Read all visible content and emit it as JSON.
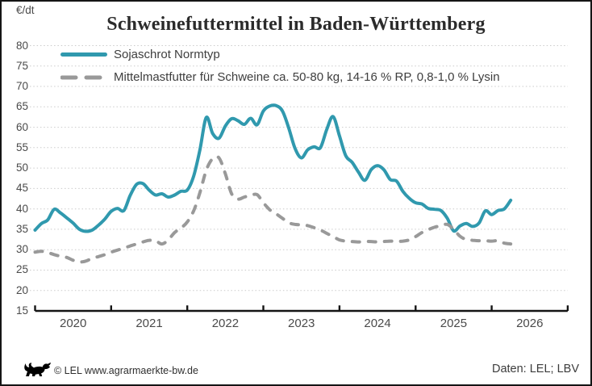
{
  "unit_label": "€/dt",
  "footer": {
    "copyright": "© LEL www.agrarmaerkte-bw.de",
    "source": "Daten: LEL; LBV",
    "logo_icon": "bw-lion-icon"
  },
  "colors": {
    "soja_line": "#3099ae",
    "mittelmast_line": "#999999",
    "grid": "#cbcbcb",
    "axis": "#141414",
    "text": "#4a4a4a"
  },
  "chart_data": {
    "type": "line",
    "title": "Schweinefuttermittel in Baden-Württemberg",
    "ylabel": "€/dt",
    "ylim": [
      15,
      80
    ],
    "y_ticks": [
      15,
      20,
      25,
      30,
      35,
      40,
      45,
      50,
      55,
      60,
      65,
      70,
      75,
      80
    ],
    "x_tick_labels": [
      "2020",
      "2021",
      "2022",
      "2023",
      "2024",
      "2025",
      "2026"
    ],
    "x_monthly_start": "2020-01",
    "grid": "horizontal-dotted",
    "legend_position": "top-left",
    "series": [
      {
        "name": "Sojaschrot Normtyp",
        "color": "#3099ae",
        "style": "solid",
        "values": [
          34.8,
          36.4,
          37.3,
          39.9,
          39.0,
          37.8,
          36.5,
          35.0,
          34.5,
          34.8,
          36.0,
          37.5,
          39.4,
          40.1,
          39.6,
          43.3,
          46.0,
          46.2,
          44.6,
          43.4,
          43.7,
          42.9,
          43.4,
          44.3,
          44.6,
          48.0,
          54.5,
          62.4,
          58.5,
          57.3,
          60.3,
          62.1,
          61.6,
          60.7,
          62.2,
          60.6,
          64.0,
          65.2,
          65.3,
          64.0,
          59.8,
          54.8,
          52.5,
          54.5,
          55.2,
          55.0,
          59.5,
          62.6,
          57.9,
          53.0,
          51.4,
          49.0,
          47.0,
          49.6,
          50.6,
          49.6,
          47.2,
          46.8,
          44.3,
          42.6,
          41.5,
          41.2,
          40.1,
          39.9,
          39.6,
          37.7,
          34.6,
          35.8,
          36.4,
          35.7,
          36.5,
          39.5,
          38.6,
          39.6,
          40.0,
          42.1
        ]
      },
      {
        "name": "Mittelmastfutter für Schweine ca. 50-80 kg, 14-16 % RP, 0,8-1,0 % Lysin",
        "color": "#999999",
        "style": "dashed",
        "values": [
          29.4,
          29.6,
          29.3,
          28.8,
          28.4,
          28.1,
          27.4,
          27.0,
          27.2,
          27.9,
          28.3,
          28.8,
          29.4,
          29.9,
          30.4,
          30.9,
          31.4,
          31.9,
          32.3,
          32.2,
          31.4,
          32.4,
          34.2,
          35.3,
          36.8,
          39.5,
          44.0,
          49.5,
          52.3,
          52.5,
          48.6,
          43.7,
          42.4,
          42.9,
          43.3,
          43.5,
          41.5,
          39.8,
          38.8,
          37.7,
          36.6,
          36.2,
          36.1,
          35.9,
          35.4,
          34.8,
          34.0,
          33.2,
          32.4,
          32.1,
          32.0,
          31.9,
          32.0,
          32.0,
          31.9,
          32.0,
          32.1,
          32.0,
          32.1,
          32.4,
          33.2,
          34.2,
          34.9,
          35.5,
          35.9,
          36.2,
          35.0,
          33.3,
          32.5,
          32.3,
          32.2,
          32.2,
          32.1,
          32.2,
          31.6,
          31.4
        ]
      }
    ]
  }
}
